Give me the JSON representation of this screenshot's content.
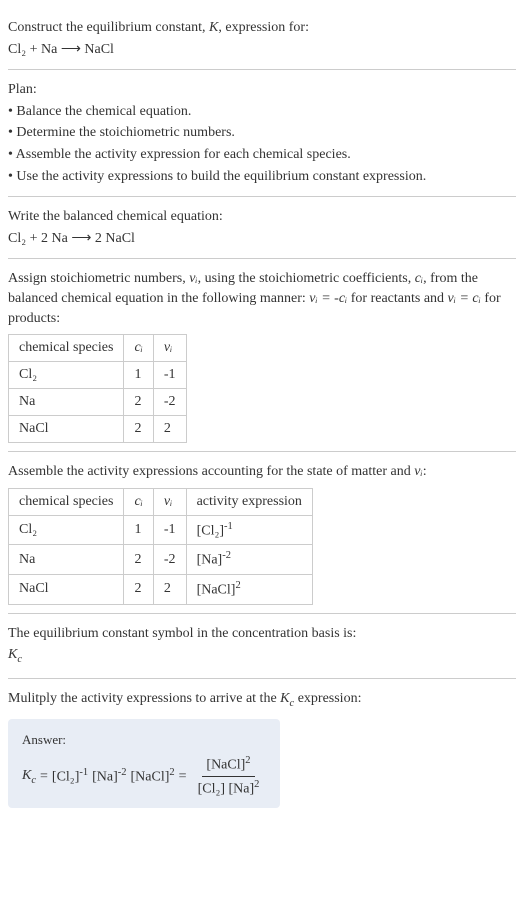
{
  "header": {
    "line1": "Construct the equilibrium constant, ",
    "line1_k": "K",
    "line1_end": ", expression for:",
    "equation": "Cl₂ + Na ⟶ NaCl"
  },
  "plan": {
    "title": "Plan:",
    "items": [
      "• Balance the chemical equation.",
      "• Determine the stoichiometric numbers.",
      "• Assemble the activity expression for each chemical species.",
      "• Use the activity expressions to build the equilibrium constant expression."
    ]
  },
  "balanced": {
    "title": "Write the balanced chemical equation:",
    "equation": "Cl₂ + 2 Na ⟶ 2 NaCl"
  },
  "stoich": {
    "intro1": "Assign stoichiometric numbers, ",
    "intro_vi": "νᵢ",
    "intro2": ", using the stoichiometric coefficients, ",
    "intro_ci": "cᵢ",
    "intro3": ", from the balanced chemical equation in the following manner: ",
    "intro_eq1": "νᵢ = -cᵢ",
    "intro4": " for reactants and ",
    "intro_eq2": "νᵢ = cᵢ",
    "intro5": " for products:",
    "headers": [
      "chemical species",
      "cᵢ",
      "νᵢ"
    ],
    "rows": [
      [
        "Cl₂",
        "1",
        "-1"
      ],
      [
        "Na",
        "2",
        "-2"
      ],
      [
        "NaCl",
        "2",
        "2"
      ]
    ]
  },
  "activity": {
    "intro1": "Assemble the activity expressions accounting for the state of matter and ",
    "intro_vi": "νᵢ",
    "intro2": ":",
    "headers": [
      "chemical species",
      "cᵢ",
      "νᵢ",
      "activity expression"
    ],
    "rows": [
      {
        "species": "Cl₂",
        "ci": "1",
        "vi": "-1",
        "expr_base": "[Cl₂]",
        "expr_exp": "-1"
      },
      {
        "species": "Na",
        "ci": "2",
        "vi": "-2",
        "expr_base": "[Na]",
        "expr_exp": "-2"
      },
      {
        "species": "NaCl",
        "ci": "2",
        "vi": "2",
        "expr_base": "[NaCl]",
        "expr_exp": "2"
      }
    ]
  },
  "symbol": {
    "line1": "The equilibrium constant symbol in the concentration basis is:",
    "kc": "K",
    "kc_sub": "c"
  },
  "multiply": {
    "line1": "Mulitply the activity expressions to arrive at the ",
    "kc": "K",
    "kc_sub": "c",
    "line2": " expression:"
  },
  "answer": {
    "label": "Answer:",
    "kc": "K",
    "kc_sub": "c",
    "eq": " = ",
    "t1_base": "[Cl₂]",
    "t1_exp": "-1",
    "t2_base": "[Na]",
    "t2_exp": "-2",
    "t3_base": "[NaCl]",
    "t3_exp": "2",
    "eq2": " = ",
    "num_base": "[NaCl]",
    "num_exp": "2",
    "den1_base": "[Cl₂]",
    "den2_base": "[Na]",
    "den2_exp": "2"
  }
}
